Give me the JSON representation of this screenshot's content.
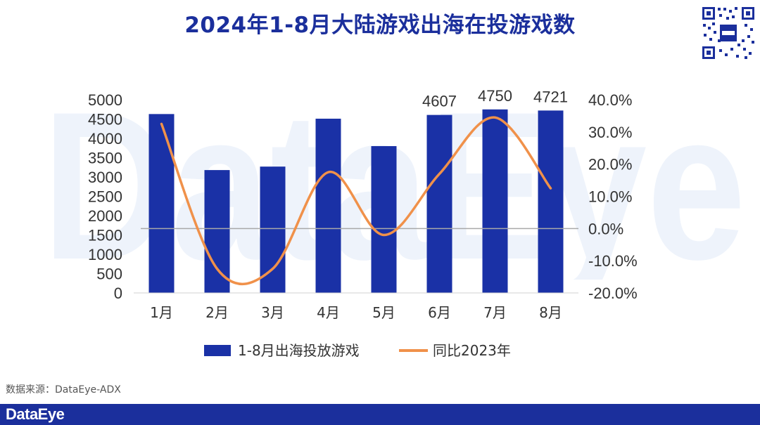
{
  "title": "2024年1-8月大陆游戏出海在投游戏数",
  "source_note": "数据来源：DataEye-ADX",
  "footer_logo": "DataEye",
  "watermark": "DataEye",
  "colors": {
    "bar": "#1a31a6",
    "line": "#f0914a",
    "title": "#1b2f9c",
    "footer": "#1b2f9c",
    "watermark": "#eef3fb"
  },
  "chart_data": {
    "type": "bar",
    "categories": [
      "1月",
      "2月",
      "3月",
      "4月",
      "5月",
      "6月",
      "7月",
      "8月"
    ],
    "series": [
      {
        "name": "1-8月出海投放游戏",
        "type": "bar",
        "axis": "left",
        "values": [
          4630,
          3180,
          3270,
          4510,
          3800,
          4607,
          4750,
          4721
        ],
        "data_labels": [
          "",
          "",
          "",
          "",
          "",
          "4607",
          "4750",
          "4721"
        ]
      },
      {
        "name": "同比2023年",
        "type": "line",
        "axis": "right",
        "values": [
          32.5,
          -12.5,
          -12.5,
          17.5,
          -2.0,
          17.0,
          34.5,
          12.5
        ]
      }
    ],
    "left_axis": {
      "ylim": [
        0,
        5000
      ],
      "ticks": [
        "0",
        "500",
        "1000",
        "1500",
        "2000",
        "2500",
        "3000",
        "3500",
        "4000",
        "4500",
        "5000"
      ]
    },
    "right_axis": {
      "ylim": [
        -20,
        40
      ],
      "ticks": [
        "-20.0%",
        "-10.0%",
        "0.0%",
        "10.0%",
        "20.0%",
        "30.0%",
        "40.0%"
      ]
    },
    "legend": "bottom",
    "grid": false
  }
}
